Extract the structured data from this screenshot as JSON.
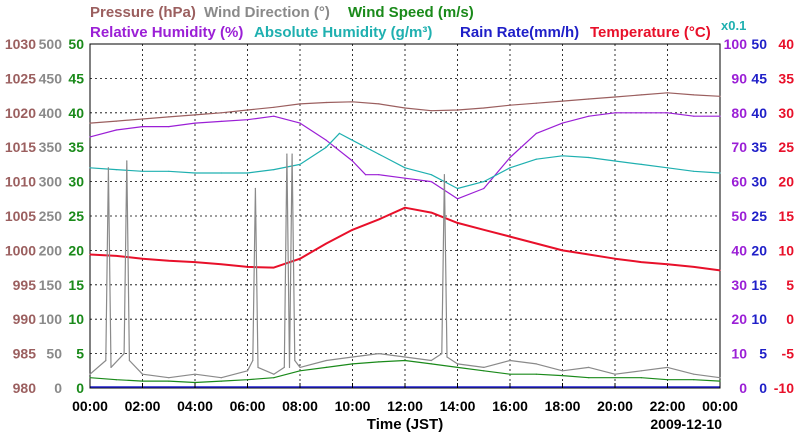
{
  "chart_data": {
    "type": "line",
    "legend": [
      {
        "label": "Pressure (hPa)",
        "color": "#9b5f5f"
      },
      {
        "label": "Wind Direction (°)",
        "color": "#8a8a8a"
      },
      {
        "label": "Wind Speed (m/s)",
        "color": "#1a8a1a"
      },
      {
        "label": "Relative Humidity (%)",
        "color": "#9b1fd6"
      },
      {
        "label": "Absolute Humidity (g/m³)",
        "color": "#1fb0b0"
      },
      {
        "label": "Rain Rate(mm/h)",
        "color": "#1f1fc8"
      },
      {
        "label": "Temperature (°C)",
        "color": "#e8102a"
      }
    ],
    "multiplier_label": "x0.1",
    "xlabel": "Time (JST)",
    "date": "2009-12-10",
    "x_ticks": [
      "00:00",
      "02:00",
      "04:00",
      "06:00",
      "08:00",
      "10:00",
      "12:00",
      "14:00",
      "16:00",
      "18:00",
      "20:00",
      "22:00",
      "00:00"
    ],
    "x_range_hours": [
      0,
      24
    ],
    "axes": {
      "pressure": {
        "color": "#9b5f5f",
        "ticks": [
          "980",
          "985",
          "990",
          "995",
          "1000",
          "1005",
          "1010",
          "1015",
          "1020",
          "1025",
          "1030"
        ],
        "range": [
          980,
          1030
        ]
      },
      "wind_direction": {
        "color": "#8a8a8a",
        "ticks": [
          "0",
          "50",
          "100",
          "150",
          "200",
          "250",
          "300",
          "350",
          "400",
          "450",
          "500"
        ],
        "range": [
          0,
          500
        ]
      },
      "wind_speed": {
        "color": "#1a8a1a",
        "ticks": [
          "0",
          "5",
          "10",
          "15",
          "20",
          "25",
          "30",
          "35",
          "40",
          "45",
          "50"
        ],
        "range": [
          0,
          50
        ]
      },
      "relative_humidity": {
        "color": "#9b1fd6",
        "ticks": [
          "0",
          "10",
          "20",
          "30",
          "40",
          "50",
          "60",
          "70",
          "80",
          "90",
          "100"
        ],
        "range": [
          0,
          100
        ]
      },
      "rain_rate": {
        "color": "#1f1fc8",
        "ticks": [
          "0",
          "5",
          "10",
          "15",
          "20",
          "25",
          "30",
          "35",
          "40",
          "45",
          "50"
        ],
        "range": [
          0,
          50
        ]
      },
      "temperature": {
        "color": "#e8102a",
        "ticks": [
          "-10",
          "-5",
          "0",
          "5",
          "10",
          "15",
          "20",
          "25",
          "30",
          "35",
          "40"
        ],
        "range": [
          -10,
          40
        ]
      }
    },
    "grid": true,
    "series": [
      {
        "name": "Pressure (hPa)",
        "axis": "pressure",
        "color": "#9b5f5f",
        "x": [
          0,
          1,
          2,
          3,
          4,
          5,
          6,
          7,
          8,
          9,
          10,
          11,
          12,
          13,
          14,
          15,
          16,
          17,
          18,
          19,
          20,
          21,
          22,
          23,
          24
        ],
        "y": [
          1018.5,
          1018.8,
          1019.1,
          1019.4,
          1019.7,
          1020.0,
          1020.4,
          1020.8,
          1021.3,
          1021.5,
          1021.6,
          1021.3,
          1020.7,
          1020.3,
          1020.4,
          1020.7,
          1021.1,
          1021.4,
          1021.7,
          1022.0,
          1022.3,
          1022.6,
          1022.9,
          1022.6,
          1022.4
        ]
      },
      {
        "name": "Relative Humidity (%)",
        "axis": "relative_humidity",
        "color": "#9b1fd6",
        "x": [
          0,
          1,
          2,
          3,
          4,
          5,
          6,
          7,
          8,
          9,
          10,
          10.5,
          11,
          12,
          13,
          14,
          15,
          16,
          17,
          18,
          19,
          20,
          21,
          22,
          23,
          24
        ],
        "y": [
          73,
          75,
          76,
          76,
          77,
          77.5,
          78,
          79,
          77,
          72,
          66,
          62,
          62,
          61,
          60,
          55,
          58,
          67,
          74,
          77,
          79,
          80,
          80,
          80,
          79,
          79
        ]
      },
      {
        "name": "Absolute Humidity (g/m³)",
        "axis": "relative_humidity",
        "color": "#1fb0b0",
        "x": [
          0,
          1,
          2,
          3,
          4,
          5,
          6,
          7,
          8,
          9,
          9.5,
          10,
          11,
          12,
          13,
          14,
          15,
          16,
          17,
          18,
          19,
          20,
          21,
          22,
          23,
          24
        ],
        "y": [
          64,
          63.5,
          63,
          63,
          62.5,
          62.5,
          62.5,
          63.5,
          65,
          70,
          74,
          72,
          68,
          64,
          62,
          58,
          60,
          64,
          66.5,
          67.5,
          67,
          66,
          65,
          64,
          63,
          62.5
        ]
      },
      {
        "name": "Temperature (°C)",
        "axis": "temperature",
        "color": "#e8102a",
        "x": [
          0,
          1,
          2,
          3,
          4,
          5,
          6,
          7,
          8,
          9,
          10,
          11,
          12,
          13,
          14,
          15,
          16,
          17,
          18,
          19,
          20,
          21,
          22,
          23,
          24
        ],
        "y": [
          9.4,
          9.2,
          8.8,
          8.5,
          8.3,
          8.0,
          7.6,
          7.5,
          8.8,
          11.0,
          13.0,
          14.5,
          16.2,
          15.5,
          14.0,
          13.0,
          12.0,
          11.0,
          10.0,
          9.4,
          8.8,
          8.3,
          8.0,
          7.6,
          7.1
        ]
      },
      {
        "name": "Wind Speed (m/s)",
        "axis": "wind_speed",
        "color": "#1a8a1a",
        "x": [
          0,
          1,
          2,
          3,
          4,
          5,
          6,
          7,
          8,
          9,
          10,
          11,
          12,
          13,
          14,
          15,
          16,
          17,
          18,
          19,
          20,
          21,
          22,
          23,
          24
        ],
        "y": [
          1.5,
          1.2,
          1.0,
          1.0,
          0.8,
          1.0,
          1.2,
          1.5,
          2.5,
          3.0,
          3.5,
          3.8,
          4.0,
          3.5,
          3.0,
          2.5,
          2.0,
          2.0,
          1.8,
          1.5,
          1.5,
          1.5,
          1.2,
          1.2,
          1.0
        ]
      },
      {
        "name": "Wind Direction (°)",
        "axis": "wind_direction",
        "color": "#8a8a8a",
        "x": [
          0,
          0.6,
          0.7,
          0.8,
          1.3,
          1.4,
          1.5,
          2,
          3,
          4,
          5,
          6,
          6.2,
          6.3,
          6.4,
          7,
          7.4,
          7.5,
          7.6,
          7.7,
          7.8,
          8,
          9,
          10,
          11,
          12,
          13,
          13.4,
          13.5,
          13.6,
          14,
          15,
          16,
          17,
          18,
          19,
          20,
          21,
          22,
          23,
          24
        ],
        "y": [
          20,
          40,
          320,
          30,
          50,
          330,
          40,
          20,
          15,
          20,
          15,
          25,
          40,
          290,
          30,
          20,
          30,
          340,
          30,
          340,
          40,
          30,
          40,
          45,
          50,
          45,
          40,
          50,
          310,
          45,
          35,
          30,
          40,
          35,
          25,
          30,
          20,
          25,
          30,
          20,
          15
        ]
      }
    ]
  }
}
